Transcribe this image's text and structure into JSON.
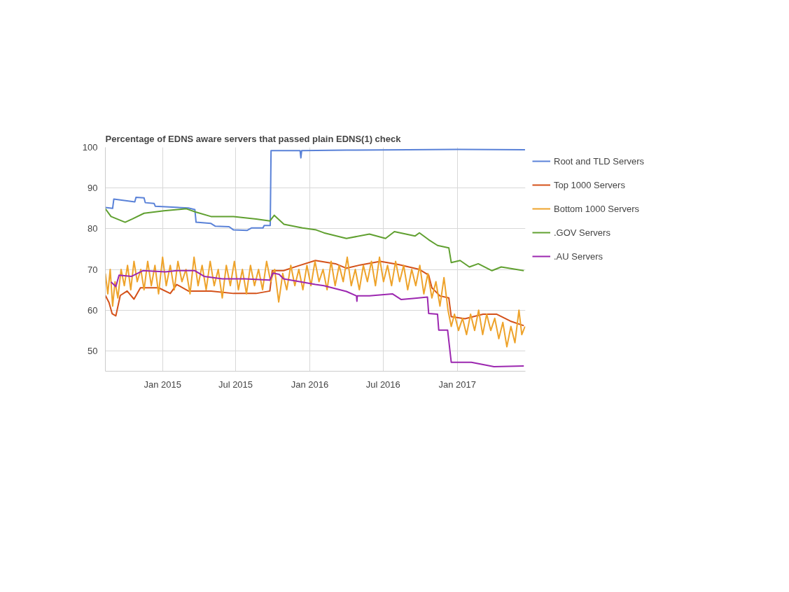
{
  "chart_data": {
    "type": "line",
    "title": "Percentage of EDNS aware servers that passed plain EDNS(1) check",
    "xlim": [
      "2014-08-12",
      "2017-06-19"
    ],
    "xticks": [
      {
        "value": "2015-01-01",
        "label": "Jan 2015"
      },
      {
        "value": "2015-07-01",
        "label": "Jul 2015"
      },
      {
        "value": "2016-01-01",
        "label": "Jan 2016"
      },
      {
        "value": "2016-07-01",
        "label": "Jul 2016"
      },
      {
        "value": "2017-01-01",
        "label": "Jan 2017"
      }
    ],
    "ylim": [
      45,
      100
    ],
    "yticks": [
      50,
      60,
      70,
      80,
      90,
      100
    ],
    "grid": true,
    "legend": "right",
    "marker": "none",
    "line_style": "solid",
    "series": [
      {
        "name": "Root and TLD Servers",
        "color": "#5a82d8",
        "x": [
          "2014-08-12",
          "2014-08-30",
          "2014-09-02",
          "2014-10-24",
          "2014-10-27",
          "2014-11-16",
          "2014-11-19",
          "2014-12-11",
          "2014-12-14",
          "2015-03-06",
          "2015-03-22",
          "2015-03-25",
          "2015-05-01",
          "2015-05-12",
          "2015-06-15",
          "2015-06-26",
          "2015-07-30",
          "2015-08-10",
          "2015-09-07",
          "2015-09-10",
          "2015-09-25",
          "2015-09-27",
          "2015-12-08",
          "2015-12-10",
          "2015-12-12",
          "2016-04-01",
          "2016-09-01",
          "2017-01-01",
          "2017-06-18"
        ],
        "values": [
          85.2,
          85.0,
          87.3,
          86.6,
          87.7,
          87.6,
          86.4,
          86.2,
          85.5,
          85.1,
          84.7,
          81.6,
          81.3,
          80.6,
          80.5,
          79.7,
          79.6,
          80.2,
          80.2,
          80.8,
          80.8,
          99.2,
          99.2,
          97.4,
          99.2,
          99.3,
          99.4,
          99.5,
          99.4
        ]
      },
      {
        "name": "Top 1000 Servers",
        "color": "#d45119",
        "x": [
          "2014-08-12",
          "2014-08-21",
          "2014-08-29",
          "2014-09-07",
          "2014-09-18",
          "2014-10-05",
          "2014-10-22",
          "2014-11-07",
          "2014-12-22",
          "2015-01-20",
          "2015-02-05",
          "2015-03-06",
          "2015-05-01",
          "2015-06-26",
          "2015-08-21",
          "2015-09-24",
          "2015-09-30",
          "2015-10-28",
          "2015-12-01",
          "2016-01-15",
          "2016-03-05",
          "2016-04-01",
          "2016-05-05",
          "2016-06-24",
          "2016-08-08",
          "2016-09-29",
          "2016-10-22",
          "2016-10-30",
          "2016-11-19",
          "2016-12-11",
          "2016-12-17",
          "2017-01-20",
          "2017-03-06",
          "2017-04-09",
          "2017-05-13",
          "2017-06-15"
        ],
        "values": [
          63.6,
          61.9,
          59.1,
          58.6,
          63.6,
          64.7,
          62.7,
          65.5,
          65.5,
          64.1,
          66.3,
          64.7,
          64.7,
          64.1,
          64.1,
          64.7,
          69.7,
          69.7,
          70.8,
          72.2,
          71.4,
          70.3,
          71.1,
          72.0,
          71.2,
          70.0,
          68.6,
          65.5,
          63.5,
          63.0,
          58.4,
          57.9,
          59.0,
          59.0,
          57.3,
          56.2
        ]
      },
      {
        "name": "Bottom 1000 Servers",
        "color": "#eea32b",
        "x": [
          "2014-08-12",
          "2014-08-18",
          "2014-08-24",
          "2014-08-30",
          "2014-09-05",
          "2014-09-12",
          "2014-09-20",
          "2014-09-28",
          "2014-10-06",
          "2014-10-14",
          "2014-10-22",
          "2014-10-30",
          "2014-11-08",
          "2014-11-16",
          "2014-11-25",
          "2014-12-04",
          "2014-12-13",
          "2014-12-22",
          "2015-01-01",
          "2015-01-10",
          "2015-01-20",
          "2015-01-30",
          "2015-02-08",
          "2015-02-18",
          "2015-02-28",
          "2015-03-10",
          "2015-03-20",
          "2015-03-30",
          "2015-04-09",
          "2015-04-19",
          "2015-04-29",
          "2015-05-09",
          "2015-05-19",
          "2015-05-29",
          "2015-06-08",
          "2015-06-18",
          "2015-06-28",
          "2015-07-08",
          "2015-07-18",
          "2015-07-28",
          "2015-08-07",
          "2015-08-17",
          "2015-08-27",
          "2015-09-06",
          "2015-09-16",
          "2015-09-26",
          "2015-10-06",
          "2015-10-16",
          "2015-10-26",
          "2015-11-05",
          "2015-11-15",
          "2015-11-25",
          "2015-12-05",
          "2015-12-15",
          "2015-12-25",
          "2016-01-04",
          "2016-01-14",
          "2016-01-24",
          "2016-02-03",
          "2016-02-13",
          "2016-02-23",
          "2016-03-04",
          "2016-03-14",
          "2016-03-24",
          "2016-04-03",
          "2016-04-13",
          "2016-04-23",
          "2016-05-03",
          "2016-05-13",
          "2016-05-23",
          "2016-06-02",
          "2016-06-12",
          "2016-06-22",
          "2016-07-02",
          "2016-07-12",
          "2016-07-22",
          "2016-08-01",
          "2016-08-11",
          "2016-08-21",
          "2016-08-31",
          "2016-09-10",
          "2016-09-20",
          "2016-09-30",
          "2016-10-10",
          "2016-10-20",
          "2016-10-30",
          "2016-11-09",
          "2016-11-19",
          "2016-11-29",
          "2016-12-09",
          "2016-12-17",
          "2016-12-25",
          "2017-01-04",
          "2017-01-14",
          "2017-01-24",
          "2017-02-03",
          "2017-02-13",
          "2017-02-23",
          "2017-03-05",
          "2017-03-15",
          "2017-03-25",
          "2017-04-04",
          "2017-04-14",
          "2017-04-24",
          "2017-05-04",
          "2017-05-14",
          "2017-05-24",
          "2017-06-03",
          "2017-06-10",
          "2017-06-18"
        ],
        "values": [
          69,
          64,
          70,
          61,
          67,
          63,
          70,
          66,
          71,
          65,
          72,
          67,
          70,
          65,
          72,
          66,
          71,
          64,
          73,
          66,
          71,
          65,
          72,
          67,
          70,
          64,
          73,
          66,
          71,
          65,
          72,
          66,
          70,
          63,
          71,
          66,
          72,
          65,
          70,
          64,
          71,
          66,
          70,
          65,
          72,
          67,
          70,
          62,
          69,
          65,
          71,
          66,
          70,
          65,
          71,
          66,
          72,
          67,
          70,
          65,
          72,
          66,
          71,
          67,
          73,
          66,
          70,
          65,
          71,
          67,
          72,
          66,
          73,
          67,
          71,
          66,
          72,
          67,
          71,
          65,
          70,
          66,
          71,
          64,
          69,
          63,
          67,
          61,
          68,
          60,
          56,
          59,
          55,
          58,
          54,
          59,
          55,
          60,
          54,
          59,
          55,
          58,
          53,
          57,
          51,
          56,
          52,
          60,
          54,
          56
        ]
      },
      {
        "name": ".GOV Servers",
        "color": "#60a030",
        "x": [
          "2014-08-12",
          "2014-08-26",
          "2014-09-30",
          "2014-10-18",
          "2014-11-16",
          "2015-01-04",
          "2015-03-01",
          "2015-03-24",
          "2015-05-01",
          "2015-06-26",
          "2015-08-21",
          "2015-09-24",
          "2015-10-05",
          "2015-10-29",
          "2015-12-14",
          "2016-01-17",
          "2016-02-05",
          "2016-04-01",
          "2016-05-28",
          "2016-07-07",
          "2016-07-29",
          "2016-09-18",
          "2016-09-29",
          "2016-10-22",
          "2016-11-13",
          "2016-12-11",
          "2016-12-17",
          "2017-01-08",
          "2017-01-31",
          "2017-02-22",
          "2017-03-28",
          "2017-04-20",
          "2017-06-15"
        ],
        "values": [
          84.9,
          83.0,
          81.6,
          82.4,
          83.8,
          84.4,
          84.9,
          84.1,
          83.0,
          83.0,
          82.4,
          81.9,
          83.3,
          81.1,
          80.2,
          79.7,
          79.0,
          77.6,
          78.7,
          77.6,
          79.3,
          78.2,
          79.0,
          77.3,
          75.9,
          75.3,
          71.7,
          72.2,
          70.6,
          71.4,
          69.7,
          70.6,
          69.7
        ]
      },
      {
        "name": ".AU Servers",
        "color": "#9c27b0",
        "x": [
          "2014-08-26",
          "2014-09-07",
          "2014-09-15",
          "2014-10-16",
          "2014-11-13",
          "2015-01-08",
          "2015-02-05",
          "2015-03-22",
          "2015-04-14",
          "2015-05-29",
          "2015-07-24",
          "2015-09-24",
          "2015-10-02",
          "2015-10-17",
          "2015-10-28",
          "2015-12-12",
          "2016-01-15",
          "2016-02-05",
          "2016-04-01",
          "2016-04-26",
          "2016-04-27",
          "2016-04-28",
          "2016-05-28",
          "2016-07-24",
          "2016-08-15",
          "2016-09-18",
          "2016-10-19",
          "2016-10-22",
          "2016-11-13",
          "2016-11-16",
          "2016-12-08",
          "2016-12-17",
          "2017-02-05",
          "2017-04-02",
          "2017-06-15"
        ],
        "values": [
          66.9,
          65.8,
          68.6,
          68.3,
          69.7,
          69.4,
          69.7,
          69.7,
          68.3,
          67.7,
          67.7,
          67.4,
          69.1,
          68.8,
          67.7,
          66.9,
          66.3,
          66.0,
          64.6,
          63.5,
          62.2,
          63.5,
          63.5,
          64.0,
          62.6,
          62.9,
          63.2,
          59.2,
          59.0,
          55.1,
          55.1,
          47.2,
          47.2,
          46.1,
          46.3
        ]
      }
    ]
  }
}
